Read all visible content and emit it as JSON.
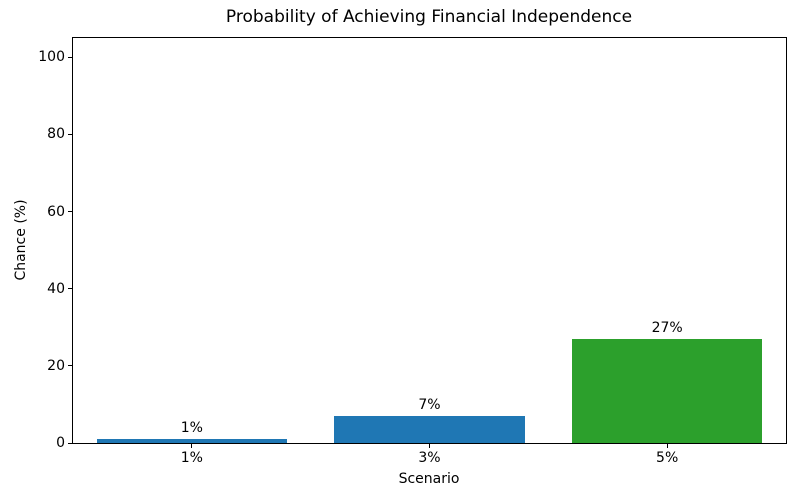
{
  "chart_data": {
    "type": "bar",
    "title": "Probability of Achieving Financial Independence",
    "xlabel": "Scenario",
    "ylabel": "Chance (%)",
    "categories": [
      "1%",
      "3%",
      "5%"
    ],
    "values": [
      1,
      7,
      27
    ],
    "bar_labels": [
      "1%",
      "7%",
      "27%"
    ],
    "bar_colors": [
      "#1f77b4",
      "#1f77b4",
      "#2ca02c"
    ],
    "yticks": [
      0,
      20,
      40,
      60,
      80,
      100
    ],
    "ytick_labels": [
      "0",
      "20",
      "40",
      "60",
      "80",
      "100"
    ],
    "ylim": [
      0,
      105
    ],
    "bar_width_fraction": 0.8,
    "grid": false,
    "legend": "none",
    "spine_color": "#000000",
    "background_color": "#ffffff"
  }
}
